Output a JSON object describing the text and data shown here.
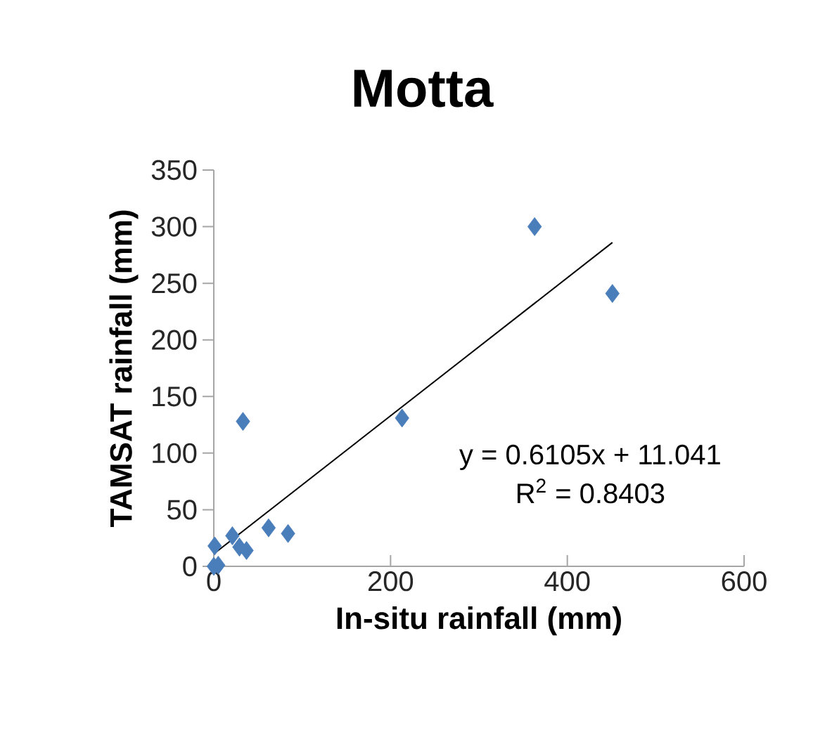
{
  "chart_data": {
    "type": "scatter",
    "title": "Motta",
    "xlabel": "In-situ rainfall (mm)",
    "ylabel": "TAMSAT rainfall (mm)",
    "xlim": [
      0,
      600
    ],
    "ylim": [
      0,
      350
    ],
    "xticks": [
      0,
      200,
      400,
      600
    ],
    "yticks": [
      0,
      50,
      100,
      150,
      200,
      250,
      300,
      350
    ],
    "series": [
      {
        "marker": "diamond",
        "color": "#4a7ebb",
        "x": [
          363,
          451,
          213,
          33,
          62,
          84,
          21,
          37,
          29,
          1,
          0,
          5
        ],
        "values": [
          300,
          241,
          131,
          128,
          34,
          29,
          27,
          14,
          17,
          18,
          0,
          1
        ]
      },
      {
        "type": "line",
        "color": "#000000",
        "x": [
          0,
          451
        ],
        "values": [
          11,
          286
        ]
      }
    ],
    "annotations": [
      "y = 0.6105x + 11.041",
      "R$^{2}$ = 0.8403"
    ]
  }
}
